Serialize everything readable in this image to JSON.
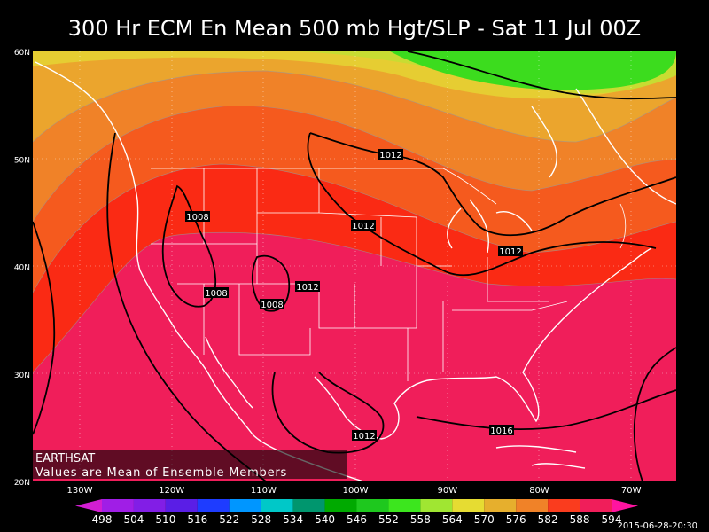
{
  "title": "300 Hr ECM En Mean 500 mb Hgt/SLP - Sat 11 Jul 00Z",
  "lat_labels": [
    "60N",
    "50N",
    "40N",
    "30N",
    "20N"
  ],
  "lon_labels": [
    "130W",
    "120W",
    "110W",
    "100W",
    "90W",
    "80W",
    "70W"
  ],
  "contour_labels": [
    "1012",
    "1008",
    "1012",
    "1012",
    "1012",
    "1008",
    "1008",
    "1012",
    "1016"
  ],
  "watermark": [
    "EARTHSAT",
    "Values are Mean of Ensemble Members"
  ],
  "timestamp": "2015-06-28-20:30",
  "colorbar": {
    "levels": [
      498,
      504,
      510,
      516,
      522,
      528,
      534,
      540,
      546,
      552,
      558,
      564,
      570,
      576,
      582,
      588,
      594
    ],
    "colors": [
      "#d21ed2",
      "#a01ee6",
      "#821ee6",
      "#5a1ee6",
      "#1e3cff",
      "#0096ff",
      "#00c8c8",
      "#00966e",
      "#00aa00",
      "#1ec81e",
      "#3ce61e",
      "#a0e632",
      "#e6dc32",
      "#e6af2d",
      "#f08228",
      "#fa3c1e",
      "#f01e5a",
      "#ff14a0"
    ]
  }
}
